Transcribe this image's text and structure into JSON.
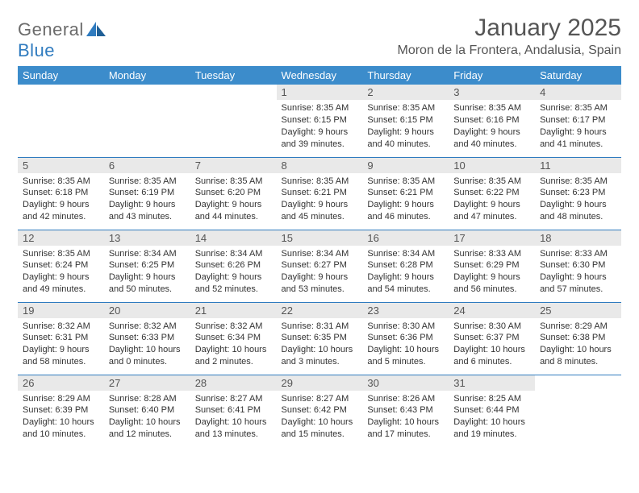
{
  "logo": {
    "text1": "General",
    "text2": "Blue"
  },
  "title": "January 2025",
  "location": "Moron de la Frontera, Andalusia, Spain",
  "colors": {
    "header_bg": "#3c8ccb",
    "border": "#2f7bbf",
    "daynum_bg": "#e9e9e9",
    "text": "#333333",
    "muted": "#555555"
  },
  "dayHeaders": [
    "Sunday",
    "Monday",
    "Tuesday",
    "Wednesday",
    "Thursday",
    "Friday",
    "Saturday"
  ],
  "weeks": [
    [
      null,
      null,
      null,
      {
        "n": "1",
        "sr": "8:35 AM",
        "ss": "6:15 PM",
        "dl": "9 hours and 39 minutes."
      },
      {
        "n": "2",
        "sr": "8:35 AM",
        "ss": "6:15 PM",
        "dl": "9 hours and 40 minutes."
      },
      {
        "n": "3",
        "sr": "8:35 AM",
        "ss": "6:16 PM",
        "dl": "9 hours and 40 minutes."
      },
      {
        "n": "4",
        "sr": "8:35 AM",
        "ss": "6:17 PM",
        "dl": "9 hours and 41 minutes."
      }
    ],
    [
      {
        "n": "5",
        "sr": "8:35 AM",
        "ss": "6:18 PM",
        "dl": "9 hours and 42 minutes."
      },
      {
        "n": "6",
        "sr": "8:35 AM",
        "ss": "6:19 PM",
        "dl": "9 hours and 43 minutes."
      },
      {
        "n": "7",
        "sr": "8:35 AM",
        "ss": "6:20 PM",
        "dl": "9 hours and 44 minutes."
      },
      {
        "n": "8",
        "sr": "8:35 AM",
        "ss": "6:21 PM",
        "dl": "9 hours and 45 minutes."
      },
      {
        "n": "9",
        "sr": "8:35 AM",
        "ss": "6:21 PM",
        "dl": "9 hours and 46 minutes."
      },
      {
        "n": "10",
        "sr": "8:35 AM",
        "ss": "6:22 PM",
        "dl": "9 hours and 47 minutes."
      },
      {
        "n": "11",
        "sr": "8:35 AM",
        "ss": "6:23 PM",
        "dl": "9 hours and 48 minutes."
      }
    ],
    [
      {
        "n": "12",
        "sr": "8:35 AM",
        "ss": "6:24 PM",
        "dl": "9 hours and 49 minutes."
      },
      {
        "n": "13",
        "sr": "8:34 AM",
        "ss": "6:25 PM",
        "dl": "9 hours and 50 minutes."
      },
      {
        "n": "14",
        "sr": "8:34 AM",
        "ss": "6:26 PM",
        "dl": "9 hours and 52 minutes."
      },
      {
        "n": "15",
        "sr": "8:34 AM",
        "ss": "6:27 PM",
        "dl": "9 hours and 53 minutes."
      },
      {
        "n": "16",
        "sr": "8:34 AM",
        "ss": "6:28 PM",
        "dl": "9 hours and 54 minutes."
      },
      {
        "n": "17",
        "sr": "8:33 AM",
        "ss": "6:29 PM",
        "dl": "9 hours and 56 minutes."
      },
      {
        "n": "18",
        "sr": "8:33 AM",
        "ss": "6:30 PM",
        "dl": "9 hours and 57 minutes."
      }
    ],
    [
      {
        "n": "19",
        "sr": "8:32 AM",
        "ss": "6:31 PM",
        "dl": "9 hours and 58 minutes."
      },
      {
        "n": "20",
        "sr": "8:32 AM",
        "ss": "6:33 PM",
        "dl": "10 hours and 0 minutes."
      },
      {
        "n": "21",
        "sr": "8:32 AM",
        "ss": "6:34 PM",
        "dl": "10 hours and 2 minutes."
      },
      {
        "n": "22",
        "sr": "8:31 AM",
        "ss": "6:35 PM",
        "dl": "10 hours and 3 minutes."
      },
      {
        "n": "23",
        "sr": "8:30 AM",
        "ss": "6:36 PM",
        "dl": "10 hours and 5 minutes."
      },
      {
        "n": "24",
        "sr": "8:30 AM",
        "ss": "6:37 PM",
        "dl": "10 hours and 6 minutes."
      },
      {
        "n": "25",
        "sr": "8:29 AM",
        "ss": "6:38 PM",
        "dl": "10 hours and 8 minutes."
      }
    ],
    [
      {
        "n": "26",
        "sr": "8:29 AM",
        "ss": "6:39 PM",
        "dl": "10 hours and 10 minutes."
      },
      {
        "n": "27",
        "sr": "8:28 AM",
        "ss": "6:40 PM",
        "dl": "10 hours and 12 minutes."
      },
      {
        "n": "28",
        "sr": "8:27 AM",
        "ss": "6:41 PM",
        "dl": "10 hours and 13 minutes."
      },
      {
        "n": "29",
        "sr": "8:27 AM",
        "ss": "6:42 PM",
        "dl": "10 hours and 15 minutes."
      },
      {
        "n": "30",
        "sr": "8:26 AM",
        "ss": "6:43 PM",
        "dl": "10 hours and 17 minutes."
      },
      {
        "n": "31",
        "sr": "8:25 AM",
        "ss": "6:44 PM",
        "dl": "10 hours and 19 minutes."
      },
      null
    ]
  ],
  "labels": {
    "sunrise": "Sunrise: ",
    "sunset": "Sunset: ",
    "daylight": "Daylight: "
  }
}
